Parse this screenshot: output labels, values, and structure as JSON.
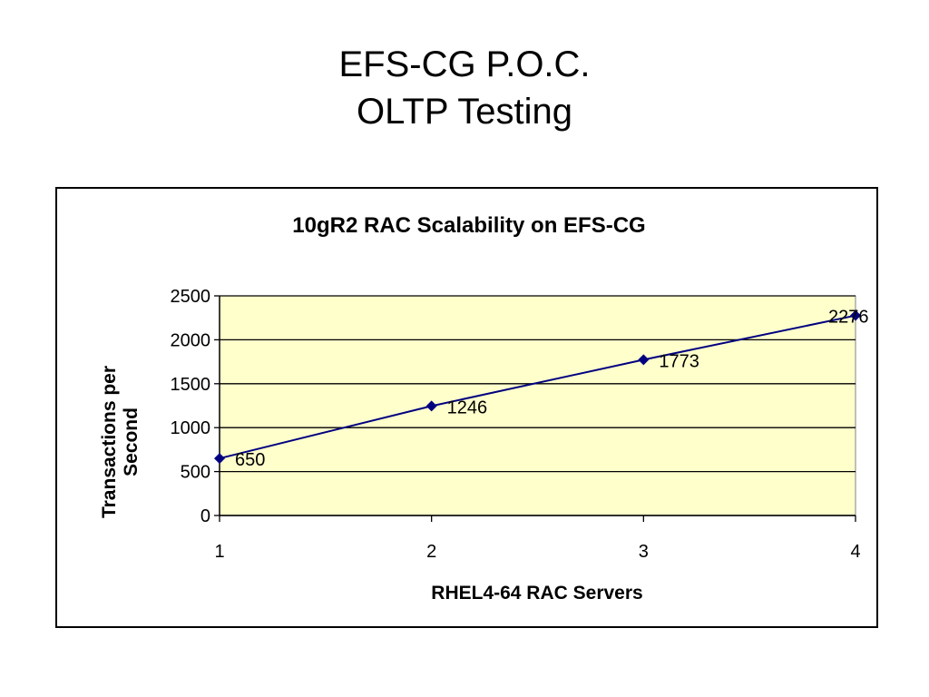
{
  "slide": {
    "title_line1": "EFS-CG P.O.C.",
    "title_line2": "OLTP Testing"
  },
  "chart_data": {
    "type": "line",
    "title": "10gR2 RAC Scalability on EFS-CG",
    "xlabel": "RHEL4-64 RAC Servers",
    "ylabel_lines": [
      "Transactions per",
      "Second"
    ],
    "x": [
      1,
      2,
      3,
      4
    ],
    "x_ticks": [
      "1",
      "2",
      "3",
      "4"
    ],
    "series": [
      {
        "values": [
          650,
          1246,
          1773,
          2276
        ],
        "data_labels": [
          "650",
          "1246",
          "1773",
          "2276"
        ]
      }
    ],
    "ylim": [
      0,
      2500
    ],
    "y_ticks": [
      0,
      500,
      1000,
      1500,
      2000,
      2500
    ],
    "grid": true,
    "legend": "none",
    "colors": {
      "plot_background": "#ffffcc",
      "series_line": "#000080",
      "marker": "#000080",
      "gridline": "#000000"
    },
    "marker": "diamond"
  }
}
